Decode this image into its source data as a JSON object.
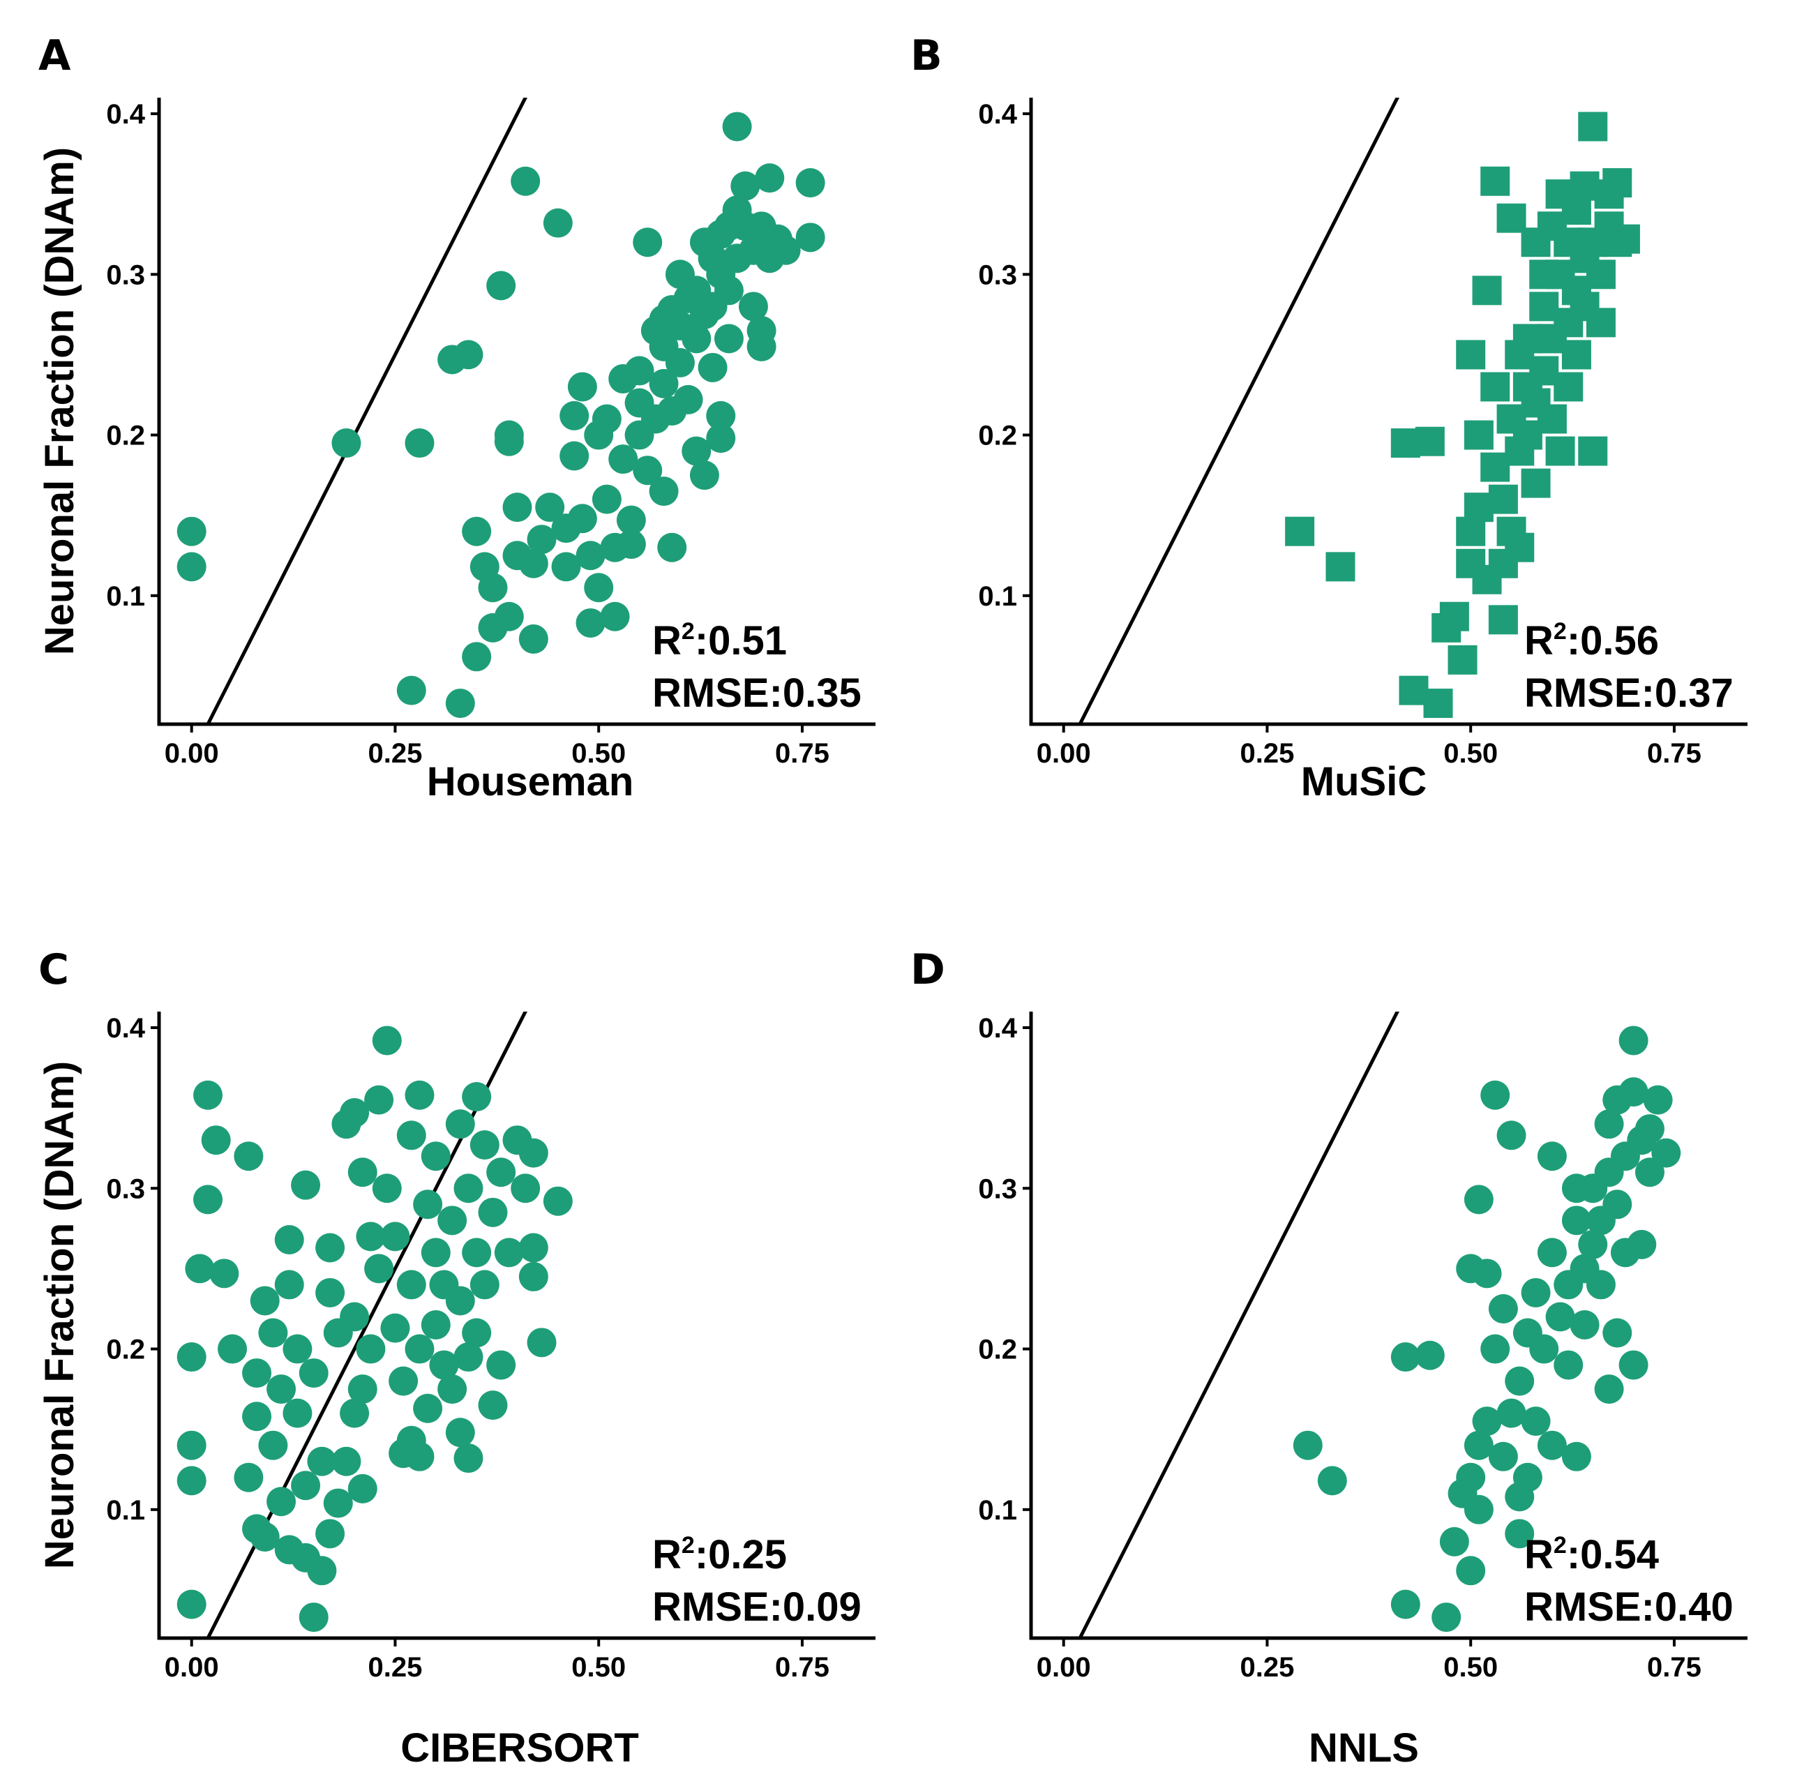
{
  "chart_data": [
    {
      "panel": "A",
      "type": "scatter",
      "marker": "circle",
      "xlabel": "Houseman",
      "ylabel": "Neuronal Fraction (DNAm)",
      "xlim": [
        -0.04,
        0.84
      ],
      "ylim": [
        0.02,
        0.41
      ],
      "xticks": [
        "0.00",
        "0.25",
        "0.50",
        "0.75"
      ],
      "yticks": [
        "0.1",
        "0.2",
        "0.3",
        "0.4"
      ],
      "annotations": {
        "r2_label": "R",
        "r2_sup": "2",
        "r2_value": ":0.51",
        "rmse": "RMSE:0.35"
      },
      "points": [
        [
          0.0,
          0.14
        ],
        [
          0.0,
          0.118
        ],
        [
          0.19,
          0.195
        ],
        [
          0.27,
          0.041
        ],
        [
          0.28,
          0.195
        ],
        [
          0.32,
          0.247
        ],
        [
          0.34,
          0.25
        ],
        [
          0.33,
          0.033
        ],
        [
          0.35,
          0.062
        ],
        [
          0.35,
          0.14
        ],
        [
          0.36,
          0.118
        ],
        [
          0.37,
          0.105
        ],
        [
          0.37,
          0.08
        ],
        [
          0.38,
          0.293
        ],
        [
          0.39,
          0.2
        ],
        [
          0.39,
          0.196
        ],
        [
          0.39,
          0.087
        ],
        [
          0.4,
          0.155
        ],
        [
          0.4,
          0.125
        ],
        [
          0.41,
          0.358
        ],
        [
          0.42,
          0.073
        ],
        [
          0.42,
          0.12
        ],
        [
          0.43,
          0.135
        ],
        [
          0.44,
          0.155
        ],
        [
          0.45,
          0.332
        ],
        [
          0.46,
          0.142
        ],
        [
          0.46,
          0.118
        ],
        [
          0.47,
          0.187
        ],
        [
          0.47,
          0.212
        ],
        [
          0.48,
          0.23
        ],
        [
          0.48,
          0.148
        ],
        [
          0.49,
          0.125
        ],
        [
          0.49,
          0.083
        ],
        [
          0.5,
          0.105
        ],
        [
          0.5,
          0.2
        ],
        [
          0.51,
          0.21
        ],
        [
          0.51,
          0.16
        ],
        [
          0.52,
          0.087
        ],
        [
          0.52,
          0.13
        ],
        [
          0.53,
          0.235
        ],
        [
          0.53,
          0.185
        ],
        [
          0.54,
          0.147
        ],
        [
          0.54,
          0.132
        ],
        [
          0.55,
          0.24
        ],
        [
          0.55,
          0.22
        ],
        [
          0.55,
          0.2
        ],
        [
          0.56,
          0.32
        ],
        [
          0.56,
          0.178
        ],
        [
          0.57,
          0.265
        ],
        [
          0.57,
          0.21
        ],
        [
          0.58,
          0.272
        ],
        [
          0.58,
          0.255
        ],
        [
          0.58,
          0.232
        ],
        [
          0.58,
          0.165
        ],
        [
          0.59,
          0.13
        ],
        [
          0.59,
          0.278
        ],
        [
          0.59,
          0.215
        ],
        [
          0.6,
          0.3
        ],
        [
          0.6,
          0.268
        ],
        [
          0.6,
          0.245
        ],
        [
          0.61,
          0.285
        ],
        [
          0.61,
          0.222
        ],
        [
          0.62,
          0.29
        ],
        [
          0.62,
          0.26
        ],
        [
          0.62,
          0.19
        ],
        [
          0.63,
          0.32
        ],
        [
          0.63,
          0.275
        ],
        [
          0.63,
          0.175
        ],
        [
          0.64,
          0.31
        ],
        [
          0.64,
          0.28
        ],
        [
          0.64,
          0.242
        ],
        [
          0.65,
          0.325
        ],
        [
          0.65,
          0.3
        ],
        [
          0.65,
          0.212
        ],
        [
          0.65,
          0.198
        ],
        [
          0.66,
          0.33
        ],
        [
          0.66,
          0.29
        ],
        [
          0.66,
          0.26
        ],
        [
          0.67,
          0.392
        ],
        [
          0.67,
          0.34
        ],
        [
          0.67,
          0.31
        ],
        [
          0.68,
          0.355
        ],
        [
          0.68,
          0.33
        ],
        [
          0.69,
          0.315
        ],
        [
          0.69,
          0.28
        ],
        [
          0.7,
          0.33
        ],
        [
          0.7,
          0.265
        ],
        [
          0.7,
          0.255
        ],
        [
          0.71,
          0.36
        ],
        [
          0.71,
          0.31
        ],
        [
          0.72,
          0.322
        ],
        [
          0.73,
          0.315
        ],
        [
          0.76,
          0.357
        ],
        [
          0.76,
          0.323
        ]
      ]
    },
    {
      "panel": "B",
      "type": "scatter",
      "marker": "square",
      "xlabel": "MuSiC",
      "ylabel": "",
      "xlim": [
        -0.04,
        0.84
      ],
      "ylim": [
        0.02,
        0.41
      ],
      "xticks": [
        "0.00",
        "0.25",
        "0.50",
        "0.75"
      ],
      "yticks": [
        "0.1",
        "0.2",
        "0.3",
        "0.4"
      ],
      "annotations": {
        "r2_label": "R",
        "r2_sup": "2",
        "r2_value": ":0.56",
        "rmse": "RMSE:0.37"
      },
      "points": [
        [
          0.29,
          0.14
        ],
        [
          0.34,
          0.118
        ],
        [
          0.42,
          0.195
        ],
        [
          0.43,
          0.041
        ],
        [
          0.45,
          0.196
        ],
        [
          0.46,
          0.033
        ],
        [
          0.47,
          0.08
        ],
        [
          0.48,
          0.087
        ],
        [
          0.49,
          0.06
        ],
        [
          0.5,
          0.12
        ],
        [
          0.5,
          0.14
        ],
        [
          0.5,
          0.25
        ],
        [
          0.51,
          0.155
        ],
        [
          0.51,
          0.2
        ],
        [
          0.52,
          0.29
        ],
        [
          0.52,
          0.11
        ],
        [
          0.53,
          0.18
        ],
        [
          0.53,
          0.23
        ],
        [
          0.53,
          0.358
        ],
        [
          0.54,
          0.12
        ],
        [
          0.54,
          0.16
        ],
        [
          0.54,
          0.085
        ],
        [
          0.55,
          0.21
        ],
        [
          0.55,
          0.335
        ],
        [
          0.55,
          0.14
        ],
        [
          0.56,
          0.19
        ],
        [
          0.56,
          0.25
        ],
        [
          0.56,
          0.13
        ],
        [
          0.57,
          0.2
        ],
        [
          0.57,
          0.23
        ],
        [
          0.57,
          0.26
        ],
        [
          0.58,
          0.17
        ],
        [
          0.58,
          0.32
        ],
        [
          0.58,
          0.22
        ],
        [
          0.59,
          0.24
        ],
        [
          0.59,
          0.3
        ],
        [
          0.59,
          0.28
        ],
        [
          0.6,
          0.21
        ],
        [
          0.6,
          0.33
        ],
        [
          0.6,
          0.26
        ],
        [
          0.61,
          0.19
        ],
        [
          0.61,
          0.3
        ],
        [
          0.61,
          0.35
        ],
        [
          0.62,
          0.27
        ],
        [
          0.62,
          0.32
        ],
        [
          0.62,
          0.23
        ],
        [
          0.63,
          0.29
        ],
        [
          0.63,
          0.34
        ],
        [
          0.63,
          0.25
        ],
        [
          0.64,
          0.31
        ],
        [
          0.64,
          0.355
        ],
        [
          0.64,
          0.28
        ],
        [
          0.65,
          0.392
        ],
        [
          0.65,
          0.32
        ],
        [
          0.65,
          0.19
        ],
        [
          0.66,
          0.3
        ],
        [
          0.66,
          0.27
        ],
        [
          0.67,
          0.33
        ],
        [
          0.67,
          0.35
        ],
        [
          0.68,
          0.32
        ],
        [
          0.68,
          0.357
        ],
        [
          0.69,
          0.322
        ]
      ]
    },
    {
      "panel": "C",
      "type": "scatter",
      "marker": "circle",
      "xlabel": "CIBERSORT",
      "ylabel": "Neuronal Fraction (DNAm)",
      "xlim": [
        -0.04,
        0.84
      ],
      "ylim": [
        0.02,
        0.41
      ],
      "xticks": [
        "0.00",
        "0.25",
        "0.50",
        "0.75"
      ],
      "yticks": [
        "0.1",
        "0.2",
        "0.3",
        "0.4"
      ],
      "annotations": {
        "r2_label": "R",
        "r2_sup": "2",
        "r2_value": ":0.25",
        "rmse": "RMSE:0.09"
      },
      "points": [
        [
          0.0,
          0.195
        ],
        [
          0.0,
          0.14
        ],
        [
          0.0,
          0.118
        ],
        [
          0.0,
          0.041
        ],
        [
          0.01,
          0.25
        ],
        [
          0.02,
          0.358
        ],
        [
          0.02,
          0.293
        ],
        [
          0.03,
          0.33
        ],
        [
          0.04,
          0.247
        ],
        [
          0.05,
          0.2
        ],
        [
          0.07,
          0.32
        ],
        [
          0.07,
          0.12
        ],
        [
          0.08,
          0.185
        ],
        [
          0.08,
          0.158
        ],
        [
          0.08,
          0.088
        ],
        [
          0.09,
          0.083
        ],
        [
          0.09,
          0.23
        ],
        [
          0.1,
          0.14
        ],
        [
          0.1,
          0.21
        ],
        [
          0.11,
          0.105
        ],
        [
          0.11,
          0.175
        ],
        [
          0.12,
          0.268
        ],
        [
          0.12,
          0.24
        ],
        [
          0.12,
          0.075
        ],
        [
          0.13,
          0.2
        ],
        [
          0.13,
          0.16
        ],
        [
          0.14,
          0.07
        ],
        [
          0.14,
          0.115
        ],
        [
          0.14,
          0.302
        ],
        [
          0.15,
          0.033
        ],
        [
          0.15,
          0.185
        ],
        [
          0.16,
          0.062
        ],
        [
          0.16,
          0.13
        ],
        [
          0.17,
          0.235
        ],
        [
          0.17,
          0.263
        ],
        [
          0.17,
          0.085
        ],
        [
          0.18,
          0.104
        ],
        [
          0.18,
          0.21
        ],
        [
          0.19,
          0.34
        ],
        [
          0.19,
          0.13
        ],
        [
          0.2,
          0.347
        ],
        [
          0.2,
          0.22
        ],
        [
          0.2,
          0.16
        ],
        [
          0.21,
          0.113
        ],
        [
          0.21,
          0.31
        ],
        [
          0.21,
          0.175
        ],
        [
          0.22,
          0.27
        ],
        [
          0.22,
          0.2
        ],
        [
          0.23,
          0.25
        ],
        [
          0.23,
          0.355
        ],
        [
          0.24,
          0.392
        ],
        [
          0.24,
          0.3
        ],
        [
          0.25,
          0.27
        ],
        [
          0.25,
          0.213
        ],
        [
          0.26,
          0.135
        ],
        [
          0.26,
          0.18
        ],
        [
          0.27,
          0.333
        ],
        [
          0.27,
          0.24
        ],
        [
          0.27,
          0.143
        ],
        [
          0.28,
          0.358
        ],
        [
          0.28,
          0.2
        ],
        [
          0.28,
          0.133
        ],
        [
          0.29,
          0.29
        ],
        [
          0.29,
          0.163
        ],
        [
          0.3,
          0.32
        ],
        [
          0.3,
          0.26
        ],
        [
          0.3,
          0.215
        ],
        [
          0.31,
          0.24
        ],
        [
          0.31,
          0.19
        ],
        [
          0.32,
          0.28
        ],
        [
          0.32,
          0.175
        ],
        [
          0.33,
          0.34
        ],
        [
          0.33,
          0.23
        ],
        [
          0.33,
          0.148
        ],
        [
          0.34,
          0.3
        ],
        [
          0.34,
          0.132
        ],
        [
          0.34,
          0.195
        ],
        [
          0.35,
          0.357
        ],
        [
          0.35,
          0.26
        ],
        [
          0.35,
          0.21
        ],
        [
          0.36,
          0.327
        ],
        [
          0.36,
          0.24
        ],
        [
          0.37,
          0.285
        ],
        [
          0.37,
          0.165
        ],
        [
          0.38,
          0.31
        ],
        [
          0.38,
          0.19
        ],
        [
          0.39,
          0.26
        ],
        [
          0.4,
          0.33
        ],
        [
          0.41,
          0.3
        ],
        [
          0.42,
          0.322
        ],
        [
          0.42,
          0.263
        ],
        [
          0.42,
          0.245
        ],
        [
          0.43,
          0.204
        ],
        [
          0.45,
          0.292
        ]
      ]
    },
    {
      "panel": "D",
      "type": "scatter",
      "marker": "circle",
      "xlabel": "NNLS",
      "ylabel": "",
      "xlim": [
        -0.04,
        0.84
      ],
      "ylim": [
        0.02,
        0.41
      ],
      "xticks": [
        "0.00",
        "0.25",
        "0.50",
        "0.75"
      ],
      "yticks": [
        "0.1",
        "0.2",
        "0.3",
        "0.4"
      ],
      "annotations": {
        "r2_label": "R",
        "r2_sup": "2",
        "r2_value": ":0.54",
        "rmse": "RMSE:0.40"
      },
      "points": [
        [
          0.3,
          0.14
        ],
        [
          0.33,
          0.118
        ],
        [
          0.42,
          0.041
        ],
        [
          0.42,
          0.195
        ],
        [
          0.45,
          0.196
        ],
        [
          0.47,
          0.033
        ],
        [
          0.48,
          0.08
        ],
        [
          0.49,
          0.11
        ],
        [
          0.5,
          0.12
        ],
        [
          0.5,
          0.062
        ],
        [
          0.5,
          0.25
        ],
        [
          0.51,
          0.14
        ],
        [
          0.51,
          0.1
        ],
        [
          0.51,
          0.293
        ],
        [
          0.52,
          0.247
        ],
        [
          0.52,
          0.155
        ],
        [
          0.53,
          0.2
        ],
        [
          0.53,
          0.358
        ],
        [
          0.54,
          0.225
        ],
        [
          0.54,
          0.133
        ],
        [
          0.55,
          0.333
        ],
        [
          0.55,
          0.16
        ],
        [
          0.56,
          0.085
        ],
        [
          0.56,
          0.108
        ],
        [
          0.56,
          0.18
        ],
        [
          0.57,
          0.21
        ],
        [
          0.57,
          0.12
        ],
        [
          0.58,
          0.235
        ],
        [
          0.58,
          0.155
        ],
        [
          0.59,
          0.2
        ],
        [
          0.6,
          0.26
        ],
        [
          0.6,
          0.32
        ],
        [
          0.6,
          0.14
        ],
        [
          0.61,
          0.22
        ],
        [
          0.62,
          0.24
        ],
        [
          0.62,
          0.19
        ],
        [
          0.63,
          0.3
        ],
        [
          0.63,
          0.28
        ],
        [
          0.63,
          0.133
        ],
        [
          0.64,
          0.25
        ],
        [
          0.64,
          0.215
        ],
        [
          0.65,
          0.265
        ],
        [
          0.65,
          0.3
        ],
        [
          0.66,
          0.28
        ],
        [
          0.66,
          0.24
        ],
        [
          0.67,
          0.34
        ],
        [
          0.67,
          0.31
        ],
        [
          0.67,
          0.175
        ],
        [
          0.68,
          0.355
        ],
        [
          0.68,
          0.29
        ],
        [
          0.68,
          0.21
        ],
        [
          0.69,
          0.26
        ],
        [
          0.69,
          0.32
        ],
        [
          0.7,
          0.392
        ],
        [
          0.7,
          0.36
        ],
        [
          0.7,
          0.19
        ],
        [
          0.71,
          0.33
        ],
        [
          0.71,
          0.265
        ],
        [
          0.72,
          0.31
        ],
        [
          0.72,
          0.337
        ],
        [
          0.73,
          0.355
        ],
        [
          0.74,
          0.322
        ]
      ]
    }
  ],
  "colors": {
    "points": "#1e9e78",
    "axes": "#000000"
  }
}
